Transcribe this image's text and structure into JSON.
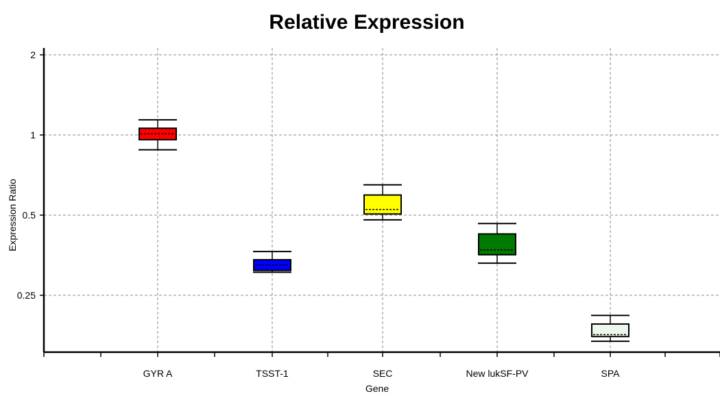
{
  "chart_data": {
    "type": "box",
    "title": "Relative Expression",
    "xlabel": "Gene",
    "ylabel": "Expression Ratio",
    "y_scale": "log2",
    "ylim": [
      0.14,
      2.1
    ],
    "y_ticks": [
      0.25,
      0.5,
      1,
      2
    ],
    "y_tick_labels": [
      "0.25",
      "0.5",
      "1",
      "2"
    ],
    "grid": true,
    "categories": [
      "GYR A",
      "TSST-1",
      "SEC",
      "New lukSF-PV",
      "SPA"
    ],
    "boxes": [
      {
        "category": "GYR A",
        "min": 0.88,
        "q1": 0.96,
        "median": 1.01,
        "q3": 1.06,
        "max": 1.14,
        "color": "#ff0000"
      },
      {
        "category": "TSST-1",
        "min": 0.305,
        "q1": 0.31,
        "median": 0.325,
        "q3": 0.34,
        "max": 0.365,
        "color": "#0000ff"
      },
      {
        "category": "SEC",
        "min": 0.48,
        "q1": 0.505,
        "median": 0.525,
        "q3": 0.595,
        "max": 0.65,
        "color": "#ffff00"
      },
      {
        "category": "New lukSF-PV",
        "min": 0.33,
        "q1": 0.355,
        "median": 0.37,
        "q3": 0.425,
        "max": 0.465,
        "color": "#007a00"
      },
      {
        "category": "SPA",
        "min": 0.168,
        "q1": 0.175,
        "median": 0.178,
        "q3": 0.195,
        "max": 0.21,
        "color": "#eef7ee"
      }
    ]
  }
}
